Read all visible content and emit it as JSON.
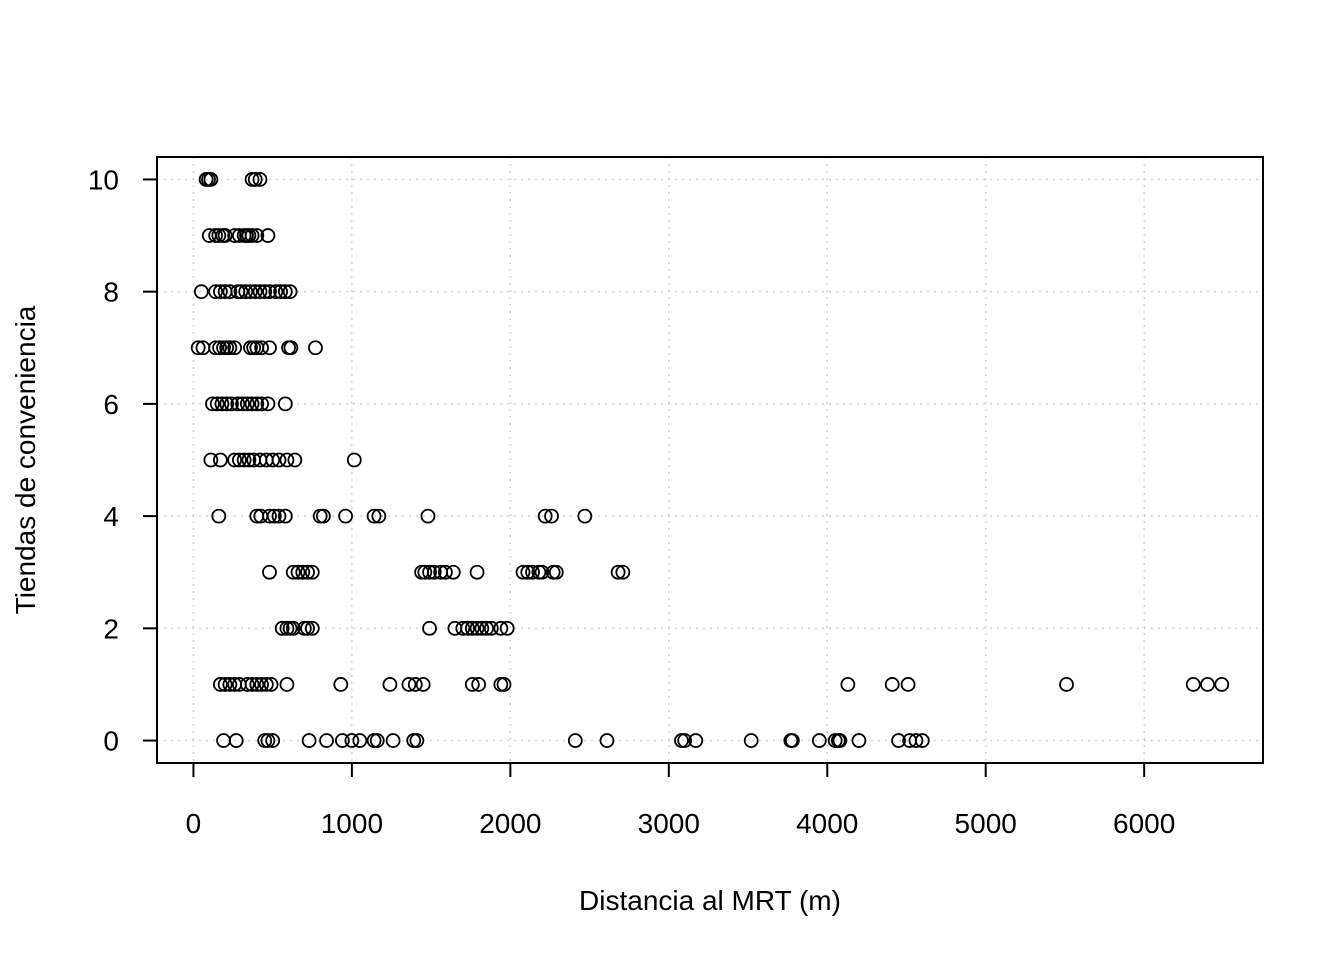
{
  "chart_data": {
    "type": "scatter",
    "xlabel": "Distancia al MRT (m)",
    "ylabel": "Tiendas de conveniencia",
    "xlim": [
      -230,
      6750
    ],
    "ylim": [
      -0.4,
      10.4
    ],
    "x_ticks": [
      0,
      1000,
      2000,
      3000,
      4000,
      5000,
      6000
    ],
    "y_ticks": [
      0,
      2,
      4,
      6,
      8,
      10
    ],
    "grid": true,
    "point_style": "open-circle",
    "series": [
      {
        "points": [
          [
            80,
            10
          ],
          [
            95,
            10
          ],
          [
            110,
            10
          ],
          [
            370,
            10
          ],
          [
            390,
            10
          ],
          [
            420,
            10
          ],
          [
            100,
            9
          ],
          [
            140,
            9
          ],
          [
            160,
            9
          ],
          [
            185,
            9
          ],
          [
            200,
            9
          ],
          [
            260,
            9
          ],
          [
            290,
            9
          ],
          [
            320,
            9
          ],
          [
            335,
            9
          ],
          [
            350,
            9
          ],
          [
            370,
            9
          ],
          [
            400,
            9
          ],
          [
            470,
            9
          ],
          [
            50,
            8
          ],
          [
            140,
            8
          ],
          [
            170,
            8
          ],
          [
            200,
            8
          ],
          [
            230,
            8
          ],
          [
            280,
            8
          ],
          [
            300,
            8
          ],
          [
            330,
            8
          ],
          [
            360,
            8
          ],
          [
            390,
            8
          ],
          [
            420,
            8
          ],
          [
            450,
            8
          ],
          [
            480,
            8
          ],
          [
            520,
            8
          ],
          [
            550,
            8
          ],
          [
            580,
            8
          ],
          [
            610,
            8
          ],
          [
            30,
            7
          ],
          [
            60,
            7
          ],
          [
            140,
            7
          ],
          [
            165,
            7
          ],
          [
            190,
            7
          ],
          [
            210,
            7
          ],
          [
            230,
            7
          ],
          [
            260,
            7
          ],
          [
            360,
            7
          ],
          [
            380,
            7
          ],
          [
            400,
            7
          ],
          [
            430,
            7
          ],
          [
            480,
            7
          ],
          [
            600,
            7
          ],
          [
            615,
            7
          ],
          [
            770,
            7
          ],
          [
            120,
            6
          ],
          [
            150,
            6
          ],
          [
            180,
            6
          ],
          [
            210,
            6
          ],
          [
            240,
            6
          ],
          [
            280,
            6
          ],
          [
            310,
            6
          ],
          [
            340,
            6
          ],
          [
            370,
            6
          ],
          [
            400,
            6
          ],
          [
            430,
            6
          ],
          [
            470,
            6
          ],
          [
            580,
            6
          ],
          [
            110,
            5
          ],
          [
            170,
            5
          ],
          [
            260,
            5
          ],
          [
            290,
            5
          ],
          [
            320,
            5
          ],
          [
            350,
            5
          ],
          [
            380,
            5
          ],
          [
            420,
            5
          ],
          [
            460,
            5
          ],
          [
            500,
            5
          ],
          [
            540,
            5
          ],
          [
            590,
            5
          ],
          [
            640,
            5
          ],
          [
            1015,
            5
          ],
          [
            160,
            4
          ],
          [
            400,
            4
          ],
          [
            425,
            4
          ],
          [
            480,
            4
          ],
          [
            510,
            4
          ],
          [
            540,
            4
          ],
          [
            580,
            4
          ],
          [
            800,
            4
          ],
          [
            820,
            4
          ],
          [
            960,
            4
          ],
          [
            1140,
            4
          ],
          [
            1170,
            4
          ],
          [
            1480,
            4
          ],
          [
            2220,
            4
          ],
          [
            2260,
            4
          ],
          [
            2470,
            4
          ],
          [
            480,
            3
          ],
          [
            630,
            3
          ],
          [
            660,
            3
          ],
          [
            690,
            3
          ],
          [
            720,
            3
          ],
          [
            750,
            3
          ],
          [
            1440,
            3
          ],
          [
            1460,
            3
          ],
          [
            1490,
            3
          ],
          [
            1520,
            3
          ],
          [
            1560,
            3
          ],
          [
            1590,
            3
          ],
          [
            1640,
            3
          ],
          [
            1790,
            3
          ],
          [
            2080,
            3
          ],
          [
            2110,
            3
          ],
          [
            2140,
            3
          ],
          [
            2180,
            3
          ],
          [
            2200,
            3
          ],
          [
            2270,
            3
          ],
          [
            2290,
            3
          ],
          [
            2680,
            3
          ],
          [
            2710,
            3
          ],
          [
            560,
            2
          ],
          [
            590,
            2
          ],
          [
            610,
            2
          ],
          [
            630,
            2
          ],
          [
            700,
            2
          ],
          [
            720,
            2
          ],
          [
            750,
            2
          ],
          [
            1490,
            2
          ],
          [
            1650,
            2
          ],
          [
            1700,
            2
          ],
          [
            1730,
            2
          ],
          [
            1760,
            2
          ],
          [
            1790,
            2
          ],
          [
            1820,
            2
          ],
          [
            1850,
            2
          ],
          [
            1880,
            2
          ],
          [
            1940,
            2
          ],
          [
            1980,
            2
          ],
          [
            170,
            1
          ],
          [
            200,
            1
          ],
          [
            230,
            1
          ],
          [
            260,
            1
          ],
          [
            290,
            1
          ],
          [
            340,
            1
          ],
          [
            370,
            1
          ],
          [
            400,
            1
          ],
          [
            430,
            1
          ],
          [
            460,
            1
          ],
          [
            490,
            1
          ],
          [
            590,
            1
          ],
          [
            930,
            1
          ],
          [
            1240,
            1
          ],
          [
            1360,
            1
          ],
          [
            1400,
            1
          ],
          [
            1450,
            1
          ],
          [
            1760,
            1
          ],
          [
            1800,
            1
          ],
          [
            1940,
            1
          ],
          [
            1960,
            1
          ],
          [
            4130,
            1
          ],
          [
            4410,
            1
          ],
          [
            4510,
            1
          ],
          [
            5510,
            1
          ],
          [
            6310,
            1
          ],
          [
            6400,
            1
          ],
          [
            6490,
            1
          ],
          [
            190,
            0
          ],
          [
            270,
            0
          ],
          [
            450,
            0
          ],
          [
            470,
            0
          ],
          [
            500,
            0
          ],
          [
            730,
            0
          ],
          [
            840,
            0
          ],
          [
            940,
            0
          ],
          [
            1000,
            0
          ],
          [
            1050,
            0
          ],
          [
            1140,
            0
          ],
          [
            1160,
            0
          ],
          [
            1260,
            0
          ],
          [
            1390,
            0
          ],
          [
            1410,
            0
          ],
          [
            2410,
            0
          ],
          [
            2610,
            0
          ],
          [
            3080,
            0
          ],
          [
            3100,
            0
          ],
          [
            3170,
            0
          ],
          [
            3520,
            0
          ],
          [
            3770,
            0
          ],
          [
            3780,
            0
          ],
          [
            3950,
            0
          ],
          [
            4050,
            0
          ],
          [
            4070,
            0
          ],
          [
            4080,
            0
          ],
          [
            4200,
            0
          ],
          [
            4450,
            0
          ],
          [
            4520,
            0
          ],
          [
            4560,
            0
          ],
          [
            4600,
            0
          ]
        ]
      }
    ]
  }
}
